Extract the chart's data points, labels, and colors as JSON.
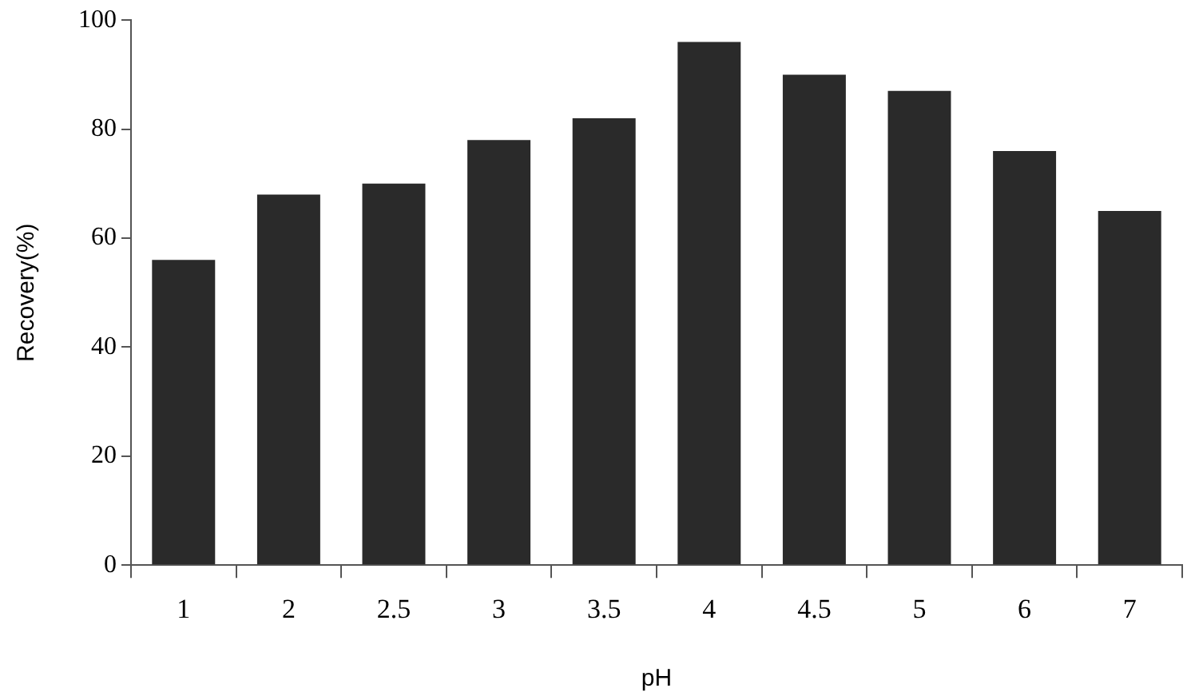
{
  "chart_data": {
    "type": "bar",
    "xlabel": "pH",
    "ylabel": "Recovery(%)",
    "categories": [
      "1",
      "2",
      "2.5",
      "3",
      "3.5",
      "4",
      "4.5",
      "5",
      "6",
      "7"
    ],
    "values": [
      56,
      68,
      70,
      78,
      82,
      96,
      90,
      87,
      76,
      65
    ],
    "color": "#2a2a2a",
    "ylim": [
      0,
      100
    ],
    "yticks": [
      0,
      20,
      40,
      60,
      80,
      100
    ],
    "grid": false,
    "legend": false
  }
}
